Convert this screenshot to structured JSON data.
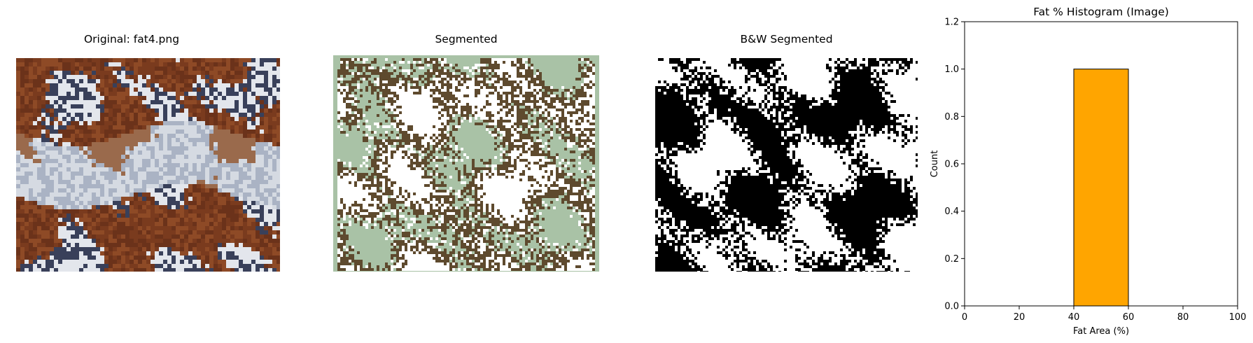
{
  "panels": {
    "original": {
      "title": "Original: fat4.png",
      "image": "liver-tissue-histology-micrograph"
    },
    "segmented": {
      "title": "Segmented",
      "image": "segmented-tissue-map"
    },
    "bw": {
      "title": "B&W Segmented",
      "image": "binary-segmentation-mask"
    }
  },
  "colors": {
    "tissue_brown": "#7a3b1e",
    "stroma_blue": "#c8d0dc",
    "seg_background": "#a9c2a6",
    "seg_tissue": "#5e4a2e",
    "bar_fill": "#ffa500",
    "bar_edge": "#000000"
  },
  "chart_data": {
    "type": "bar",
    "title": "Fat % Histogram (Image)",
    "xlabel": "Fat Area (%)",
    "ylabel": "Count",
    "xlim": [
      0,
      100
    ],
    "ylim": [
      0,
      1.2
    ],
    "xticks": [
      "0",
      "20",
      "40",
      "60",
      "80",
      "100"
    ],
    "yticks": [
      "0.0",
      "0.2",
      "0.4",
      "0.6",
      "0.8",
      "1.0",
      "1.2"
    ],
    "bins": [
      {
        "x0": 40,
        "x1": 60,
        "count": 1.0
      }
    ],
    "grid": false,
    "legend": "none"
  }
}
